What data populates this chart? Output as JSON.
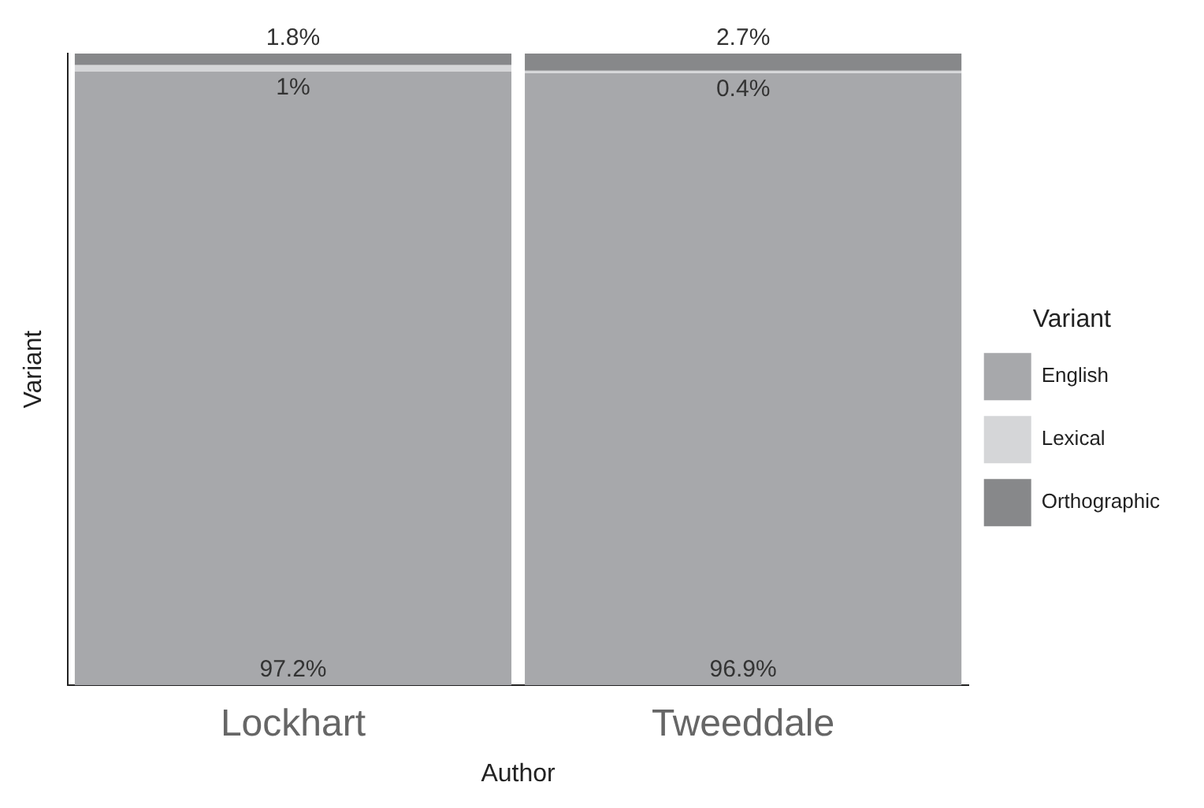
{
  "chart_data": {
    "type": "bar",
    "stacked": true,
    "xlabel": "Author",
    "ylabel": "Variant",
    "legend_title": "Variant",
    "legend": "right",
    "tick_labels": "x",
    "grid": false,
    "ylim": [
      0,
      100
    ],
    "categories": [
      "Lockhart",
      "Tweeddale"
    ],
    "series": [
      {
        "name": "English",
        "color": "#a7a8ab",
        "values": [
          97.2,
          96.9
        ],
        "value_labels": [
          "97.2%",
          "96.9%"
        ]
      },
      {
        "name": "Lexical",
        "color": "#d5d6d8",
        "values": [
          1,
          0.4
        ],
        "value_labels": [
          "1%",
          "0.4%"
        ]
      },
      {
        "name": "Orthographic",
        "color": "#87888a",
        "values": [
          1.8,
          2.7
        ],
        "value_labels": [
          "1.8%",
          "2.7%"
        ]
      }
    ]
  }
}
